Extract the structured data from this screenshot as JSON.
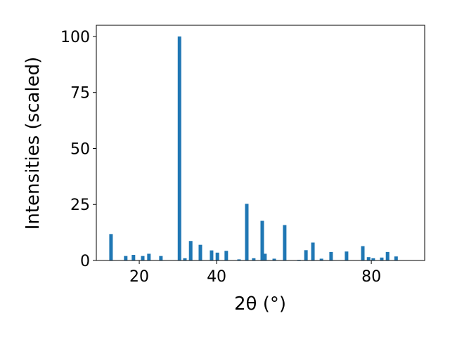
{
  "chart_data": {
    "type": "bar",
    "xlabel": "2θ (°)",
    "ylabel": "Intensities (scaled)",
    "x": [
      12.7,
      16.5,
      18.5,
      20.9,
      22.5,
      25.6,
      30.4,
      31.8,
      33.3,
      35.8,
      38.7,
      40.2,
      42.5,
      45.8,
      47.8,
      49.6,
      51.8,
      52.5,
      54.9,
      57.6,
      61.3,
      63.1,
      64.9,
      67.1,
      69.6,
      73.6,
      77.8,
      79.3,
      80.5,
      82.7,
      84.2,
      86.4
    ],
    "values": [
      11.8,
      2,
      2.5,
      2,
      3,
      2,
      100,
      1,
      8.7,
      7,
      4.5,
      3.5,
      4.3,
      0.5,
      25.3,
      1,
      17.7,
      3,
      0.8,
      15.8,
      0.3,
      4.6,
      8,
      0.8,
      3.8,
      4,
      6.4,
      1.5,
      1,
      1.3,
      3.8,
      1.8
    ],
    "color": "#1f77b4",
    "xlim": [
      8.9,
      93.8
    ],
    "xticks": [
      20,
      40,
      80
    ],
    "ylim": [
      0,
      105
    ],
    "yticks": [
      0,
      25,
      50,
      75,
      100
    ]
  }
}
